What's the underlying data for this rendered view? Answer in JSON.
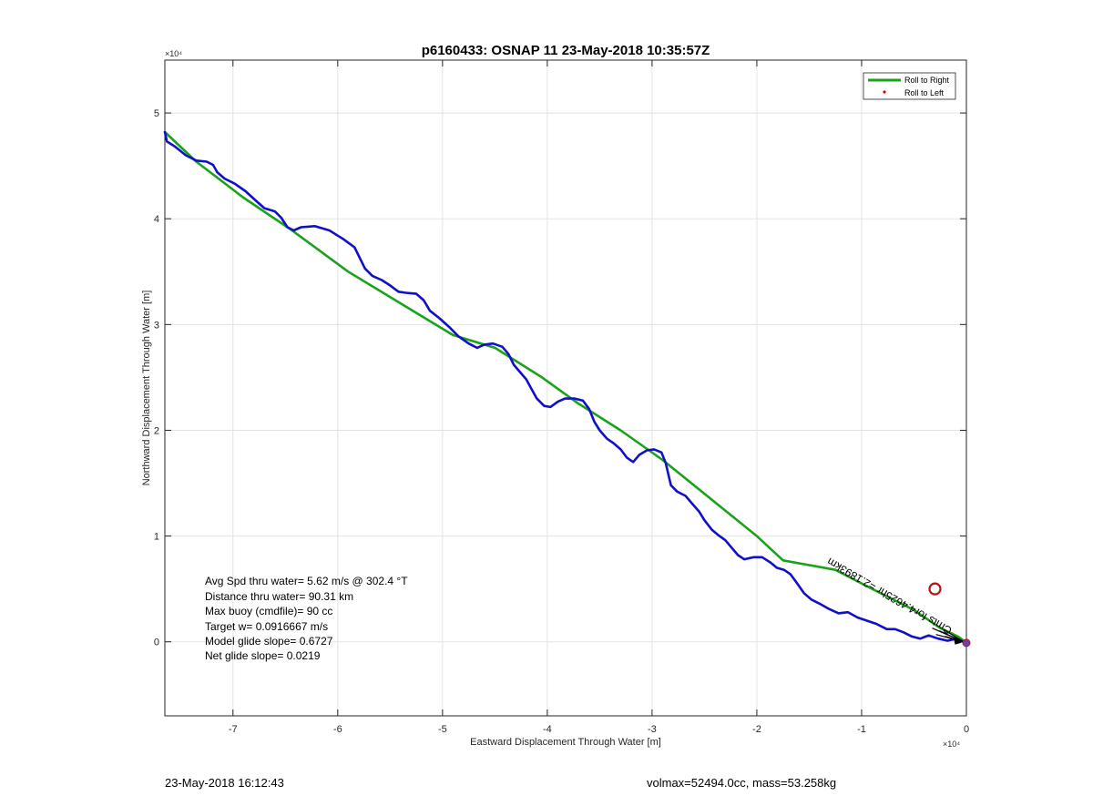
{
  "chart_data": {
    "type": "line",
    "title": "p6160433: OSNAP 11 23-May-2018 10:35:57Z",
    "xlabel": "Eastward Displacement Through Water [m]",
    "ylabel": "Northward Displacement Through Water [m]",
    "x_exponent": "×10⁴",
    "y_exponent": "×10⁴",
    "xlim": [
      -76500,
      0
    ],
    "ylim": [
      -7000,
      55000
    ],
    "xticks": [
      -70000,
      -60000,
      -50000,
      -40000,
      -30000,
      -20000,
      -10000,
      0
    ],
    "xtick_labels": [
      "-7",
      "-6",
      "-5",
      "-4",
      "-3",
      "-2",
      "-1",
      "0"
    ],
    "yticks": [
      0,
      10000,
      20000,
      30000,
      40000,
      50000
    ],
    "ytick_labels": [
      "0",
      "1",
      "2",
      "3",
      "4",
      "5"
    ],
    "grid": true,
    "legend": {
      "placement": "top-right",
      "entries": [
        {
          "label": "Roll to Right",
          "color": "#1aa31a",
          "marker": "line"
        },
        {
          "label": "Roll to Left",
          "color": "#e00000",
          "marker": "dot"
        }
      ]
    },
    "series": [
      {
        "name": "Roll to Right",
        "color": "#1aa31a",
        "points": [
          [
            -76500,
            48200
          ],
          [
            -73500,
            45400
          ],
          [
            -69000,
            42000
          ],
          [
            -64500,
            39000
          ],
          [
            -59000,
            35000
          ],
          [
            -54000,
            32000
          ],
          [
            -49000,
            29000
          ],
          [
            -45000,
            27800
          ],
          [
            -40500,
            25000
          ],
          [
            -37000,
            22500
          ],
          [
            -33000,
            20000
          ],
          [
            -29000,
            17200
          ],
          [
            -25000,
            14000
          ],
          [
            -20000,
            10000
          ],
          [
            -17500,
            7700
          ],
          [
            -12500,
            6800
          ],
          [
            -9000,
            5000
          ],
          [
            -5000,
            3000
          ],
          [
            -2500,
            1300
          ],
          [
            -800,
            500
          ],
          [
            -100,
            0
          ]
        ]
      },
      {
        "color": "#1010c8",
        "points": [
          [
            -76500,
            48200
          ],
          [
            -76300,
            47300
          ],
          [
            -75500,
            46800
          ],
          [
            -74500,
            46000
          ],
          [
            -73500,
            45500
          ],
          [
            -72500,
            45400
          ],
          [
            -71900,
            45100
          ],
          [
            -71500,
            44400
          ],
          [
            -70800,
            43800
          ],
          [
            -69800,
            43300
          ],
          [
            -68800,
            42600
          ],
          [
            -67800,
            41700
          ],
          [
            -67000,
            41000
          ],
          [
            -66000,
            40700
          ],
          [
            -65400,
            40100
          ],
          [
            -64800,
            39200
          ],
          [
            -64200,
            38900
          ],
          [
            -63500,
            39200
          ],
          [
            -62200,
            39300
          ],
          [
            -60800,
            38900
          ],
          [
            -59500,
            38100
          ],
          [
            -58400,
            37300
          ],
          [
            -57900,
            36300
          ],
          [
            -57400,
            35300
          ],
          [
            -56700,
            34600
          ],
          [
            -55800,
            34200
          ],
          [
            -55000,
            33700
          ],
          [
            -54200,
            33100
          ],
          [
            -53500,
            33000
          ],
          [
            -52500,
            32900
          ],
          [
            -51800,
            32300
          ],
          [
            -51200,
            31300
          ],
          [
            -50300,
            30600
          ],
          [
            -49400,
            29800
          ],
          [
            -48500,
            28900
          ],
          [
            -47500,
            28200
          ],
          [
            -46700,
            27800
          ],
          [
            -46000,
            28100
          ],
          [
            -45200,
            28200
          ],
          [
            -44300,
            27900
          ],
          [
            -43700,
            27200
          ],
          [
            -43200,
            26200
          ],
          [
            -42600,
            25500
          ],
          [
            -42000,
            24800
          ],
          [
            -41500,
            23900
          ],
          [
            -41000,
            23000
          ],
          [
            -40300,
            22300
          ],
          [
            -39700,
            22200
          ],
          [
            -39000,
            22700
          ],
          [
            -38300,
            23000
          ],
          [
            -37400,
            23000
          ],
          [
            -36600,
            22800
          ],
          [
            -36000,
            22000
          ],
          [
            -35500,
            20800
          ],
          [
            -35000,
            20000
          ],
          [
            -34300,
            19200
          ],
          [
            -33700,
            18800
          ],
          [
            -33000,
            18200
          ],
          [
            -32400,
            17400
          ],
          [
            -31800,
            17000
          ],
          [
            -31200,
            17700
          ],
          [
            -30500,
            18100
          ],
          [
            -29800,
            18200
          ],
          [
            -29100,
            17900
          ],
          [
            -28700,
            16900
          ],
          [
            -28200,
            14800
          ],
          [
            -27600,
            14200
          ],
          [
            -26800,
            13800
          ],
          [
            -26200,
            13100
          ],
          [
            -25500,
            12300
          ],
          [
            -25000,
            11500
          ],
          [
            -24300,
            10600
          ],
          [
            -23700,
            10100
          ],
          [
            -23000,
            9600
          ],
          [
            -22400,
            8900
          ],
          [
            -21800,
            8200
          ],
          [
            -21200,
            7800
          ],
          [
            -20300,
            8000
          ],
          [
            -19500,
            8000
          ],
          [
            -18700,
            7500
          ],
          [
            -18100,
            7000
          ],
          [
            -17400,
            6800
          ],
          [
            -16800,
            6400
          ],
          [
            -16200,
            5600
          ],
          [
            -15500,
            4600
          ],
          [
            -14800,
            4000
          ],
          [
            -14000,
            3600
          ],
          [
            -13100,
            3100
          ],
          [
            -12200,
            2700
          ],
          [
            -11300,
            2800
          ],
          [
            -10400,
            2300
          ],
          [
            -9500,
            2000
          ],
          [
            -8600,
            1700
          ],
          [
            -7600,
            1200
          ],
          [
            -6800,
            1200
          ],
          [
            -6000,
            900
          ],
          [
            -5200,
            500
          ],
          [
            -4400,
            300
          ],
          [
            -3600,
            600
          ],
          [
            -2700,
            300
          ],
          [
            -1800,
            100
          ],
          [
            -900,
            300
          ],
          [
            -300,
            0
          ],
          [
            0,
            -100
          ]
        ]
      }
    ],
    "annotations": {
      "track_label": "Cmts for4.4625hr =2.1893km",
      "stats": [
        "Avg Spd thru water=  5.62 m/s @ 302.4 °T",
        "Distance thru water= 90.31 km",
        "Max buoy (cmdfile)= 90 cc",
        "Target w= 0.0916667 m/s",
        "Model glide slope= 0.6727",
        "Net glide slope= 0.0219"
      ],
      "target_marker": {
        "x": -3000,
        "y": 5000,
        "color": "#c01010"
      }
    }
  },
  "footer": {
    "timestamp": "23-May-2018 16:12:43",
    "volume_mass": "volmax=52494.0cc, mass=53.258kg"
  }
}
